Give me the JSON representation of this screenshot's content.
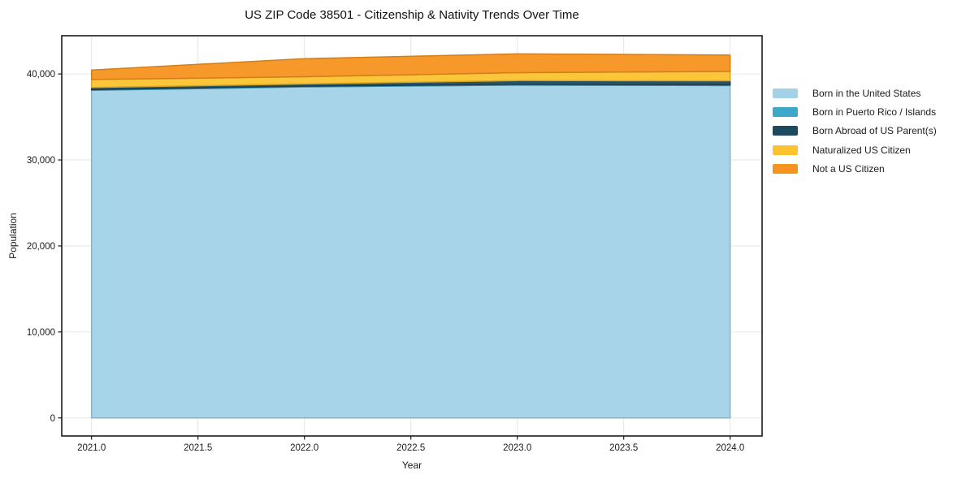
{
  "title": "US ZIP Code 38501 - Citizenship & Nativity Trends Over Time",
  "chart_data": {
    "type": "area",
    "stacked": true,
    "title": "US ZIP Code 38501 - Citizenship & Nativity Trends Over Time",
    "xlabel": "Year",
    "ylabel": "Population",
    "x": [
      2021,
      2022,
      2023,
      2024
    ],
    "series": [
      {
        "name": "Born in the United States",
        "color": "#A3D2E8",
        "values": [
          38100,
          38500,
          38700,
          38650
        ]
      },
      {
        "name": "Born in Puerto Rico / Islands",
        "color": "#3DA8C8",
        "values": [
          80,
          80,
          100,
          100
        ]
      },
      {
        "name": "Born Abroad of US Parent(s)",
        "color": "#1E4A5F",
        "values": [
          250,
          260,
          440,
          460
        ]
      },
      {
        "name": "Naturalized US Citizen",
        "color": "#FCC32F",
        "values": [
          930,
          840,
          910,
          1090
        ]
      },
      {
        "name": "Not a US Citizen",
        "color": "#F7941F",
        "values": [
          1100,
          2100,
          2190,
          1900
        ]
      }
    ],
    "stack_totals": [
      40460,
      41780,
      42340,
      42200
    ],
    "xlim": [
      2020.86,
      2024.15
    ],
    "ylim": [
      -2100,
      44450
    ],
    "x_ticks": {
      "values": [
        2021.0,
        2021.5,
        2022.0,
        2022.5,
        2023.0,
        2023.5,
        2024.0
      ],
      "labels": [
        "2021.0",
        "2021.5",
        "2022.0",
        "2022.5",
        "2023.0",
        "2023.5",
        "2024.0"
      ]
    },
    "y_ticks": {
      "values": [
        0,
        10000,
        20000,
        30000,
        40000
      ],
      "labels": [
        "0",
        "10,000",
        "20,000",
        "30,000",
        "40,000"
      ]
    },
    "grid": true,
    "grid_color": "#e6e6e6",
    "spine_color": "#1a1a1a",
    "tick_label_color": "#1a1a1a",
    "legend_position": "right"
  }
}
